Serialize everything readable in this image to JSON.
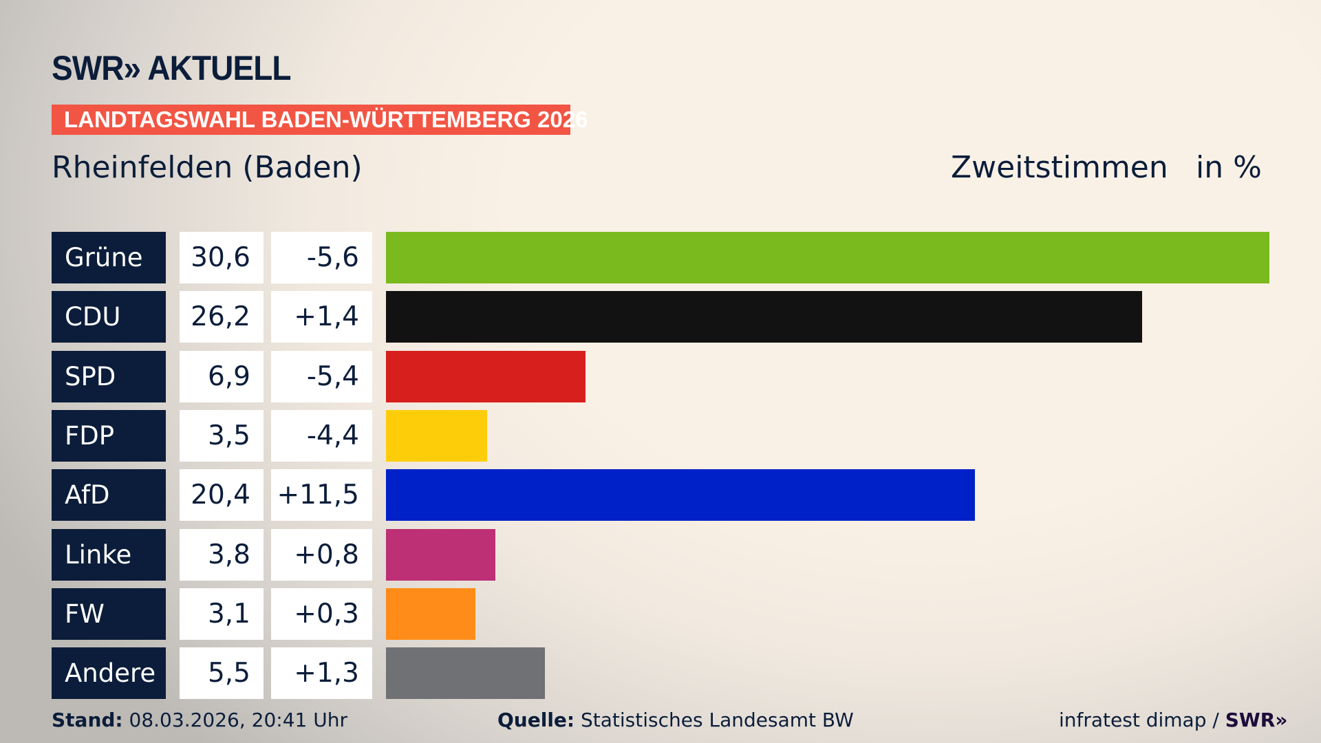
{
  "logo": "SWR» AKTUELL",
  "banner": "LANDTAGSWAHL BADEN-WÜRTTEMBERG 2026",
  "region": "Rheinfelden (Baden)",
  "chart_data": {
    "type": "bar",
    "orientation": "horizontal",
    "title": "Zweitstimmen",
    "unit": "in %",
    "categories": [
      "Grüne",
      "CDU",
      "SPD",
      "FDP",
      "AfD",
      "Linke",
      "FW",
      "Andere"
    ],
    "values": [
      30.6,
      26.2,
      6.9,
      3.5,
      20.4,
      3.8,
      3.1,
      5.5
    ],
    "values_label": [
      "30,6",
      "26,2",
      "6,9",
      "3,5",
      "20,4",
      "3,8",
      "3,1",
      "5,5"
    ],
    "changes": [
      "-5,6",
      "+1,4",
      "-5,4",
      "-4,4",
      "+11,5",
      "+0,8",
      "+0,3",
      "+1,3"
    ],
    "colors": [
      "#7aba1e",
      "#121212",
      "#d7201e",
      "#fdcd0a",
      "#0021c8",
      "#bd3075",
      "#ff8c18",
      "#707175"
    ]
  },
  "footer": {
    "stand_label": "Stand:",
    "stand": "08.03.2026, 20:41 Uhr",
    "quelle_label": "Quelle:",
    "quelle": "Statistisches Landesamt BW",
    "credit": "infratest dimap / ",
    "credit_logo": "SWR»"
  }
}
